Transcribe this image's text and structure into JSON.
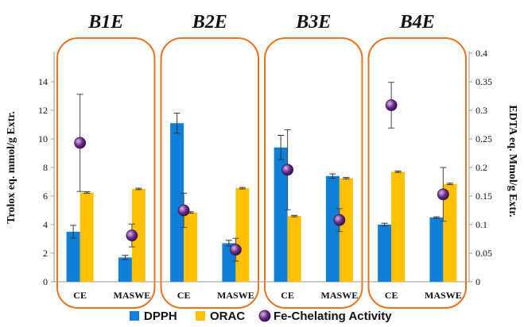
{
  "chart_data": {
    "type": "bar",
    "group_titles": [
      "B1E",
      "B2E",
      "B3E",
      "B4E"
    ],
    "categories": [
      "CE",
      "MASWE",
      "CE",
      "MASWE",
      "CE",
      "MASWE",
      "CE",
      "MASWE"
    ],
    "ylabel": "Trolox eq. mmol/g Extr.",
    "y2label": "EDTA eq. Mmol/g Extr.",
    "ylim": [
      0,
      16
    ],
    "y2lim": [
      0,
      0.4
    ],
    "yticks": [
      "0",
      "2",
      "4",
      "6",
      "8",
      "10",
      "12",
      "14"
    ],
    "y2ticks": [
      "0",
      "0.05",
      "0.1",
      "0.15",
      "0.2",
      "0.25",
      "0.3",
      "0.35",
      "0.4"
    ],
    "grid": false,
    "legend_position": "bottom",
    "series": [
      {
        "name": "DPPH",
        "axis": "left",
        "color": "#0f7fd8",
        "values": [
          3.5,
          1.7,
          11.1,
          2.7,
          9.4,
          7.4,
          4.0,
          4.5
        ],
        "errors": [
          0.45,
          0.15,
          0.7,
          0.2,
          0.85,
          0.15,
          0.1,
          0.05
        ]
      },
      {
        "name": "ORAC",
        "axis": "left",
        "color": "#ffc000",
        "values": [
          6.25,
          6.5,
          4.85,
          6.55,
          4.6,
          7.25,
          7.7,
          6.85
        ],
        "errors": [
          0.05,
          0.05,
          0.05,
          0.05,
          0.05,
          0.05,
          0.05,
          0.05
        ]
      },
      {
        "name": "Fe-Chelating Activity",
        "axis": "right",
        "type": "scatter",
        "color": "#6a2c8a",
        "values": [
          0.243,
          0.081,
          0.125,
          0.056,
          0.196,
          0.108,
          0.309,
          0.153
        ],
        "errors": [
          0.085,
          0.02,
          0.03,
          0.02,
          0.07,
          0.02,
          0.04,
          0.047
        ]
      }
    ],
    "group_frame_color": "#e8721e"
  }
}
